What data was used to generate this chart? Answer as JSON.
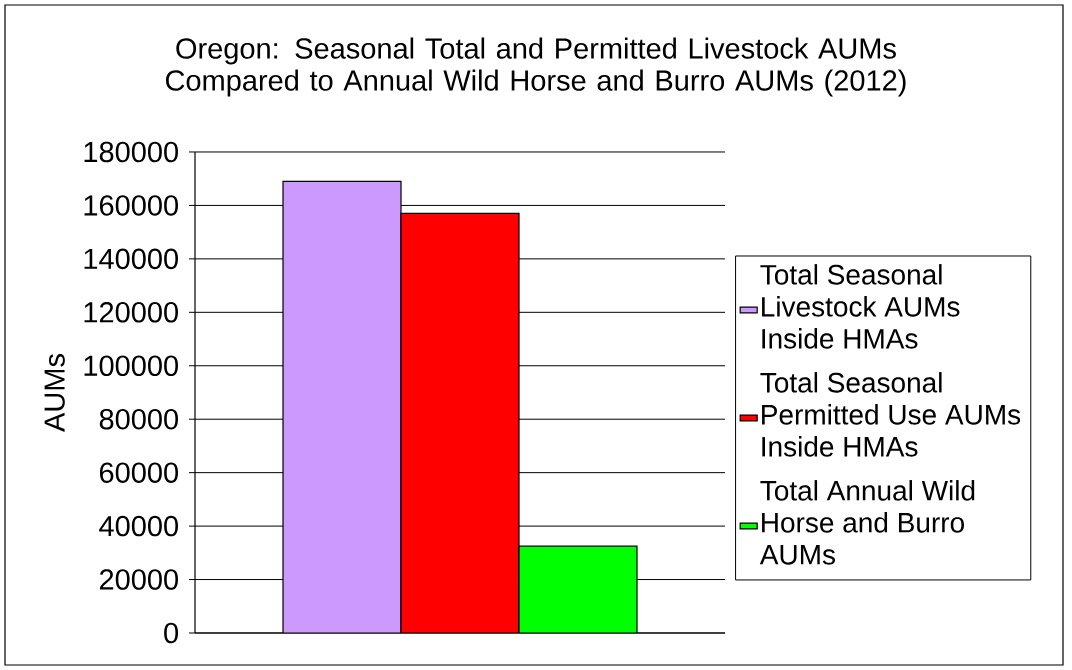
{
  "chart_data": {
    "type": "bar",
    "title": "Oregon: Seasonal Total and Permitted Livestock AUMs Compared to Annual Wild Horse and Burro AUMs (2012)",
    "ylabel": "AUMs",
    "categories": [
      null
    ],
    "series": [
      {
        "name": "Total Seasonal Livestock AUMs Inside HMAs",
        "color": "#cc99ff",
        "values": [
          169000
        ]
      },
      {
        "name": "Total Seasonal Permitted Use AUMs Inside HMAs",
        "color": "#ff0000",
        "values": [
          157000
        ]
      },
      {
        "name": "Total Annual Wild Horse and Burro AUMs",
        "color": "#00ff00",
        "values": [
          32500
        ]
      }
    ],
    "ylim": [
      0,
      180000
    ],
    "yticks": [
      0,
      20000,
      40000,
      60000,
      80000,
      100000,
      120000,
      140000,
      160000,
      180000
    ],
    "grid": "y",
    "legend": "right"
  }
}
